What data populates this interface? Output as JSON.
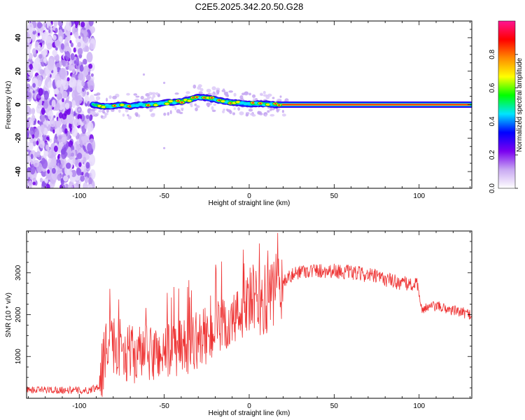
{
  "title": "C2E5.2025.342.20.50.G28",
  "chart_data": [
    {
      "type": "heatmap",
      "xlabel": "Height of straight line (km)",
      "ylabel": "Frequency (Hz)",
      "xlim": [
        -131,
        131
      ],
      "ylim": [
        -50,
        50
      ],
      "xticks": [
        -100,
        -50,
        0,
        50,
        100
      ],
      "yticks": [
        -40,
        -20,
        0,
        20,
        40
      ],
      "ridge": {
        "x": [
          -92,
          -85,
          -80,
          -75,
          -70,
          -65,
          -60,
          -55,
          -50,
          -45,
          -40,
          -35,
          -30,
          -25,
          -20,
          -15,
          -10,
          -5,
          0,
          5,
          10,
          15,
          20,
          30,
          40,
          50,
          60,
          70,
          80,
          90,
          100,
          110,
          120,
          131
        ],
        "freq": [
          0,
          -1,
          -1,
          0,
          -1,
          0,
          0,
          0.5,
          1,
          1.5,
          2,
          3,
          4.5,
          4,
          3,
          2,
          1.5,
          1,
          0.5,
          0.5,
          0.5,
          0,
          0,
          0,
          0,
          0,
          0,
          0,
          0,
          0,
          0,
          0,
          0,
          0
        ]
      },
      "noise_region_x": [
        -131,
        -92
      ],
      "colorbar": {
        "label": "Normalized spectral amplitude",
        "range": [
          0,
          1
        ],
        "ticks": [
          "0.0",
          "0.2",
          "0.4",
          "0.6",
          "0.8"
        ],
        "colors": [
          "#ffffff",
          "#c9a9f2",
          "#7a00f0",
          "#0000ff",
          "#00e5ff",
          "#00ff00",
          "#ffff00",
          "#ff8c00",
          "#ff0000",
          "#ff1493"
        ]
      }
    },
    {
      "type": "line",
      "xlabel": "Height of straight line (km)",
      "ylabel": "SNR (10 * v/v)",
      "xlim": [
        -131,
        131
      ],
      "ylim": [
        0,
        4000
      ],
      "xticks": [
        -100,
        -50,
        0,
        50,
        100
      ],
      "yticks": [
        1000,
        2000,
        3000
      ],
      "color": "#ee3333",
      "envelope": {
        "x": [
          -131,
          -110,
          -95,
          -88,
          -85,
          -80,
          -70,
          -60,
          -50,
          -40,
          -30,
          -20,
          -10,
          0,
          5,
          10,
          15,
          20,
          30,
          40,
          50,
          60,
          70,
          80,
          90,
          99,
          101,
          110,
          120,
          131
        ],
        "y": [
          200,
          200,
          180,
          300,
          1100,
          1300,
          1050,
          1050,
          1100,
          1200,
          1400,
          1600,
          1800,
          2300,
          2300,
          2300,
          2500,
          2800,
          3050,
          3050,
          3050,
          3000,
          2950,
          2850,
          2750,
          2700,
          2150,
          2200,
          2100,
          2000
        ]
      }
    }
  ]
}
